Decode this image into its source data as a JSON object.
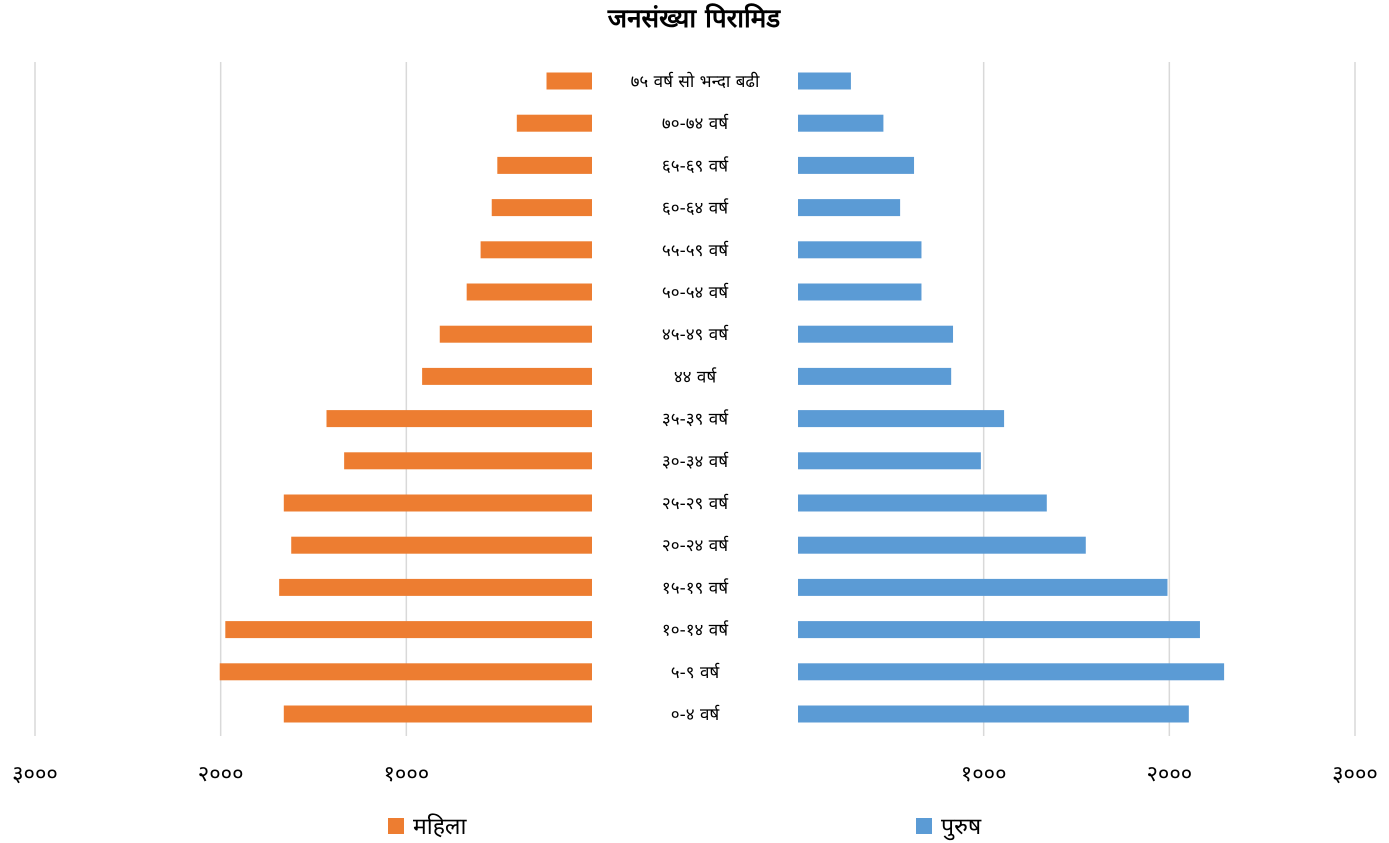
{
  "chart_data": {
    "type": "bar",
    "orientation": "horizontal",
    "title": "जनसंख्या पिरामिड",
    "categories": [
      "७५ वर्ष सो भन्दा बढी",
      "७०-७४ वर्ष",
      "६५-६९ वर्ष",
      "६०-६४ वर्ष",
      "५५-५९ वर्ष",
      "५०-५४ वर्ष",
      "४५-४९ वर्ष",
      "४४ वर्ष",
      "३५-३९ वर्ष",
      "३०-३४ वर्ष",
      "२५-२९ वर्ष",
      "२०-२४ वर्ष",
      "१५-१९ वर्ष",
      "१०-१४ वर्ष",
      "५-९ वर्ष",
      "०-४ वर्ष"
    ],
    "series": [
      {
        "name": "महिला",
        "color": "#ED7D31",
        "side": "left",
        "values": [
          245,
          405,
          510,
          540,
          600,
          675,
          820,
          915,
          1430,
          1335,
          1660,
          1620,
          1685,
          1975,
          2005,
          1660
        ]
      },
      {
        "name": "पुरुष",
        "color": "#5B9BD5",
        "side": "right",
        "values": [
          285,
          460,
          625,
          550,
          665,
          665,
          835,
          825,
          1110,
          985,
          1340,
          1550,
          1990,
          2165,
          2295,
          2105
        ]
      }
    ],
    "xlim": [
      0,
      3000
    ],
    "ticks": [
      1000,
      2000,
      3000
    ],
    "tick_labels": [
      "१०००",
      "२०००",
      "३०००"
    ],
    "grid": true,
    "legend_position": "bottom"
  }
}
